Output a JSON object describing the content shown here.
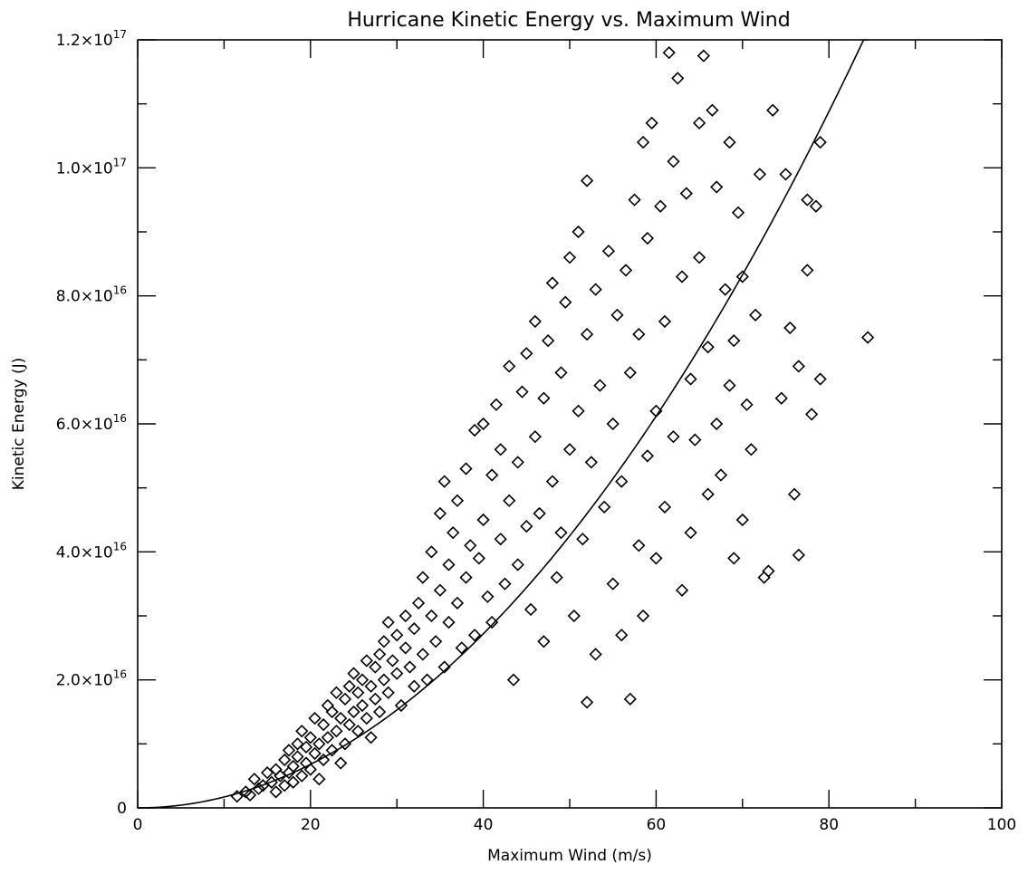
{
  "chart_data": {
    "type": "scatter",
    "title": "Hurricane Kinetic Energy vs. Maximum Wind",
    "xlabel": "Maximum Wind (m/s)",
    "ylabel": "Kinetic Energy (J)",
    "xlim": [
      0,
      100
    ],
    "ylim": [
      0,
      1.2e+17
    ],
    "x_ticks": [
      0,
      20,
      40,
      60,
      80,
      100
    ],
    "x_tick_labels": [
      "0",
      "20",
      "40",
      "60",
      "80",
      "100"
    ],
    "y_ticks": [
      0,
      2e+16,
      4e+16,
      6e+16,
      8e+16,
      1e+17,
      1.2e+17
    ],
    "y_tick_labels": [
      {
        "mantissa": "0",
        "exp": ""
      },
      {
        "mantissa": "2.0×10",
        "exp": "16"
      },
      {
        "mantissa": "4.0×10",
        "exp": "16"
      },
      {
        "mantissa": "6.0×10",
        "exp": "16"
      },
      {
        "mantissa": "8.0×10",
        "exp": "16"
      },
      {
        "mantissa": "1.0×10",
        "exp": "17"
      },
      {
        "mantissa": "1.2×10",
        "exp": "17"
      }
    ],
    "grid": false,
    "marker": "diamond-open",
    "fit_curve": {
      "form": "power",
      "coefficient": 17000000000000.0,
      "exponent": 2.0,
      "x_range": [
        0,
        84.5
      ]
    },
    "series": [
      {
        "points": [
          [
            11.5,
            1800000000000000.0
          ],
          [
            12.5,
            2500000000000000.0
          ],
          [
            13.0,
            2000000000000000.0
          ],
          [
            13.5,
            4500000000000000.0
          ],
          [
            14.0,
            3000000000000000.0
          ],
          [
            14.5,
            3500000000000000.0
          ],
          [
            15.0,
            5500000000000000.0
          ],
          [
            15.5,
            4000000000000000.0
          ],
          [
            16.0,
            6000000000000000.0
          ],
          [
            16.0,
            2500000000000000.0
          ],
          [
            16.5,
            5000000000000000.0
          ],
          [
            17.0,
            7500000000000000.0
          ],
          [
            17.0,
            3500000000000000.0
          ],
          [
            17.5,
            9000000000000000.0
          ],
          [
            17.5,
            5500000000000000.0
          ],
          [
            18.0,
            6500000000000000.0
          ],
          [
            18.0,
            4000000000000000.0
          ],
          [
            18.5,
            1e+16
          ],
          [
            18.5,
            8000000000000000.0
          ],
          [
            19.0,
            5000000000000000.0
          ],
          [
            19.0,
            1.2e+16
          ],
          [
            19.5,
            7000000000000000.0
          ],
          [
            19.5,
            9500000000000000.0
          ],
          [
            20.0,
            1.1e+16
          ],
          [
            20.0,
            6000000000000000.0
          ],
          [
            20.5,
            8500000000000000.0
          ],
          [
            20.5,
            1.4e+16
          ],
          [
            21.0,
            1e+16
          ],
          [
            21.0,
            4500000000000000.0
          ],
          [
            21.5,
            1.3e+16
          ],
          [
            21.5,
            7500000000000000.0
          ],
          [
            22.0,
            1.6e+16
          ],
          [
            22.0,
            1.1e+16
          ],
          [
            22.5,
            9000000000000000.0
          ],
          [
            22.5,
            1.5e+16
          ],
          [
            23.0,
            1.8e+16
          ],
          [
            23.0,
            1.2e+16
          ],
          [
            23.5,
            7000000000000000.0
          ],
          [
            23.5,
            1.4e+16
          ],
          [
            24.0,
            1.7e+16
          ],
          [
            24.0,
            1e+16
          ],
          [
            24.5,
            1.9e+16
          ],
          [
            24.5,
            1.3e+16
          ],
          [
            25.0,
            1.5e+16
          ],
          [
            25.0,
            2.1e+16
          ],
          [
            25.5,
            1.2e+16
          ],
          [
            25.5,
            1.8e+16
          ],
          [
            26.0,
            1.6e+16
          ],
          [
            26.0,
            2e+16
          ],
          [
            26.5,
            1.4e+16
          ],
          [
            26.5,
            2.3e+16
          ],
          [
            27.0,
            1.9e+16
          ],
          [
            27.0,
            1.1e+16
          ],
          [
            27.5,
            2.2e+16
          ],
          [
            27.5,
            1.7e+16
          ],
          [
            28.0,
            2.4e+16
          ],
          [
            28.0,
            1.5e+16
          ],
          [
            28.5,
            2e+16
          ],
          [
            28.5,
            2.6e+16
          ],
          [
            29.0,
            1.8e+16
          ],
          [
            29.0,
            2.9e+16
          ],
          [
            29.5,
            2.3e+16
          ],
          [
            30.0,
            2.1e+16
          ],
          [
            30.0,
            2.7e+16
          ],
          [
            30.5,
            1.6e+16
          ],
          [
            31.0,
            2.5e+16
          ],
          [
            31.0,
            3e+16
          ],
          [
            31.5,
            2.2e+16
          ],
          [
            32.0,
            2.8e+16
          ],
          [
            32.0,
            1.9e+16
          ],
          [
            32.5,
            3.2e+16
          ],
          [
            33.0,
            2.4e+16
          ],
          [
            33.0,
            3.6e+16
          ],
          [
            33.5,
            2e+16
          ],
          [
            34.0,
            3e+16
          ],
          [
            34.0,
            4e+16
          ],
          [
            34.5,
            2.6e+16
          ],
          [
            35.0,
            3.4e+16
          ],
          [
            35.0,
            4.6e+16
          ],
          [
            35.5,
            2.2e+16
          ],
          [
            35.5,
            5.1e+16
          ],
          [
            36.0,
            3.8e+16
          ],
          [
            36.0,
            2.9e+16
          ],
          [
            36.5,
            4.3e+16
          ],
          [
            37.0,
            3.2e+16
          ],
          [
            37.0,
            4.8e+16
          ],
          [
            37.5,
            2.5e+16
          ],
          [
            38.0,
            3.6e+16
          ],
          [
            38.0,
            5.3e+16
          ],
          [
            38.5,
            4.1e+16
          ],
          [
            39.0,
            2.7e+16
          ],
          [
            39.0,
            5.9e+16
          ],
          [
            39.5,
            3.9e+16
          ],
          [
            40.0,
            4.5e+16
          ],
          [
            40.0,
            6e+16
          ],
          [
            40.5,
            3.3e+16
          ],
          [
            41.0,
            5.2e+16
          ],
          [
            41.0,
            2.9e+16
          ],
          [
            41.5,
            6.3e+16
          ],
          [
            42.0,
            4.2e+16
          ],
          [
            42.0,
            5.6e+16
          ],
          [
            42.5,
            3.5e+16
          ],
          [
            43.0,
            6.9e+16
          ],
          [
            43.0,
            4.8e+16
          ],
          [
            43.5,
            2e+16
          ],
          [
            44.0,
            5.4e+16
          ],
          [
            44.0,
            3.8e+16
          ],
          [
            44.5,
            6.5e+16
          ],
          [
            45.0,
            4.4e+16
          ],
          [
            45.0,
            7.1e+16
          ],
          [
            45.5,
            3.1e+16
          ],
          [
            46.0,
            5.8e+16
          ],
          [
            46.0,
            7.6e+16
          ],
          [
            46.5,
            4.6e+16
          ],
          [
            47.0,
            6.4e+16
          ],
          [
            47.0,
            2.6e+16
          ],
          [
            47.5,
            7.3e+16
          ],
          [
            48.0,
            5.1e+16
          ],
          [
            48.0,
            8.2e+16
          ],
          [
            48.5,
            3.6e+16
          ],
          [
            49.0,
            6.8e+16
          ],
          [
            49.0,
            4.3e+16
          ],
          [
            49.5,
            7.9e+16
          ],
          [
            50.0,
            5.6e+16
          ],
          [
            50.0,
            8.6e+16
          ],
          [
            50.5,
            3e+16
          ],
          [
            51.0,
            6.2e+16
          ],
          [
            51.0,
            9e+16
          ],
          [
            51.5,
            4.2e+16
          ],
          [
            52.0,
            7.4e+16
          ],
          [
            52.0,
            9.8e+16
          ],
          [
            52.0,
            1.65e+16
          ],
          [
            52.5,
            5.4e+16
          ],
          [
            53.0,
            8.1e+16
          ],
          [
            53.0,
            2.4e+16
          ],
          [
            53.5,
            6.6e+16
          ],
          [
            54.0,
            4.7e+16
          ],
          [
            54.5,
            8.7e+16
          ],
          [
            55.0,
            6e+16
          ],
          [
            55.0,
            3.5e+16
          ],
          [
            55.5,
            7.7e+16
          ],
          [
            56.0,
            5.1e+16
          ],
          [
            56.0,
            2.7e+16
          ],
          [
            56.5,
            8.4e+16
          ],
          [
            57.0,
            6.8e+16
          ],
          [
            57.0,
            1.7e+16
          ],
          [
            57.5,
            9.5e+16
          ],
          [
            58.0,
            4.1e+16
          ],
          [
            58.0,
            7.4e+16
          ],
          [
            58.5,
            1.04e+17
          ],
          [
            58.5,
            3e+16
          ],
          [
            59.0,
            8.9e+16
          ],
          [
            59.0,
            5.5e+16
          ],
          [
            59.5,
            1.07e+17
          ],
          [
            60.0,
            6.2e+16
          ],
          [
            60.0,
            3.9e+16
          ],
          [
            60.5,
            9.4e+16
          ],
          [
            61.0,
            7.6e+16
          ],
          [
            61.0,
            4.7e+16
          ],
          [
            61.5,
            1.18e+17
          ],
          [
            62.0,
            1.01e+17
          ],
          [
            62.0,
            5.8e+16
          ],
          [
            62.5,
            1.14e+17
          ],
          [
            63.0,
            8.3e+16
          ],
          [
            63.0,
            3.4e+16
          ],
          [
            63.5,
            9.6e+16
          ],
          [
            64.0,
            6.7e+16
          ],
          [
            64.0,
            4.3e+16
          ],
          [
            64.5,
            5.75e+16
          ],
          [
            65.0,
            1.07e+17
          ],
          [
            65.0,
            8.6e+16
          ],
          [
            65.5,
            1.175e+17
          ],
          [
            66.0,
            7.2e+16
          ],
          [
            66.0,
            4.9e+16
          ],
          [
            66.5,
            1.09e+17
          ],
          [
            67.0,
            9.7e+16
          ],
          [
            67.0,
            6e+16
          ],
          [
            67.5,
            5.2e+16
          ],
          [
            68.0,
            8.1e+16
          ],
          [
            68.5,
            1.04e+17
          ],
          [
            68.5,
            6.6e+16
          ],
          [
            69.0,
            7.3e+16
          ],
          [
            69.0,
            3.9e+16
          ],
          [
            69.5,
            9.3e+16
          ],
          [
            70.0,
            4.5e+16
          ],
          [
            70.0,
            8.3e+16
          ],
          [
            70.5,
            6.3e+16
          ],
          [
            71.0,
            5.6e+16
          ],
          [
            71.5,
            7.7e+16
          ],
          [
            72.0,
            9.9e+16
          ],
          [
            72.5,
            3.6e+16
          ],
          [
            73.0,
            3.7e+16
          ],
          [
            73.5,
            1.09e+17
          ],
          [
            74.5,
            6.4e+16
          ],
          [
            75.0,
            9.9e+16
          ],
          [
            75.5,
            7.5e+16
          ],
          [
            76.0,
            4.9e+16
          ],
          [
            76.5,
            3.95e+16
          ],
          [
            76.5,
            6.9e+16
          ],
          [
            77.5,
            8.4e+16
          ],
          [
            77.5,
            9.5e+16
          ],
          [
            78.0,
            6.15e+16
          ],
          [
            78.5,
            9.4e+16
          ],
          [
            79.0,
            1.04e+17
          ],
          [
            79.0,
            6.7e+16
          ],
          [
            84.5,
            7.35e+16
          ]
        ]
      }
    ]
  }
}
